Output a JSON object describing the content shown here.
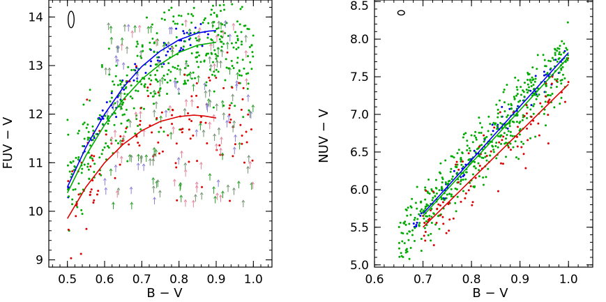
{
  "chart_data": [
    {
      "type": "scatter",
      "panel": "left",
      "xlabel": "B − V",
      "ylabel": "FUV − V",
      "xlim": [
        0.45,
        1.05
      ],
      "ylim": [
        8.85,
        14.35
      ],
      "xticks": [
        0.5,
        0.6,
        0.7,
        0.8,
        0.9,
        1.0
      ],
      "xtick_labels": [
        "0.5",
        "0.6",
        "0.7",
        "0.8",
        "0.9",
        "1.0"
      ],
      "yticks": [
        9,
        10,
        11,
        12,
        13,
        14
      ],
      "ytick_labels": [
        "9",
        "10",
        "11",
        "12",
        "13",
        "14"
      ],
      "ellipse_annotation": {
        "x": 0.51,
        "y": 13.95,
        "rx": 0.008,
        "ry": 0.17
      },
      "fits": [
        {
          "name": "blue fit",
          "color": "#0000ee",
          "x": [
            0.5,
            0.55,
            0.6,
            0.65,
            0.7,
            0.75,
            0.8,
            0.85,
            0.88,
            0.9
          ],
          "y": [
            10.5,
            11.32,
            12.0,
            12.55,
            12.98,
            13.3,
            13.53,
            13.67,
            13.71,
            13.72
          ]
        },
        {
          "name": "green fit",
          "color": "#00aa00",
          "x": [
            0.5,
            0.55,
            0.6,
            0.65,
            0.7,
            0.75,
            0.8,
            0.85,
            0.9
          ],
          "y": [
            10.38,
            11.15,
            11.78,
            12.3,
            12.72,
            13.03,
            13.27,
            13.42,
            13.48
          ]
        },
        {
          "name": "red fit",
          "color": "#dd0000",
          "x": [
            0.5,
            0.55,
            0.6,
            0.65,
            0.7,
            0.75,
            0.8,
            0.84,
            0.87,
            0.9
          ],
          "y": [
            9.85,
            10.5,
            11.0,
            11.38,
            11.66,
            11.85,
            11.95,
            11.98,
            11.96,
            11.92
          ]
        }
      ],
      "series": [
        {
          "name": "blue points",
          "color": "#0000ee",
          "count": 70,
          "trend_x": [
            0.5,
            0.6,
            0.7,
            0.8,
            0.88
          ],
          "trend_y": [
            10.5,
            12.0,
            12.98,
            13.53,
            13.71
          ],
          "scatter": 0.15
        },
        {
          "name": "green points",
          "color": "#00aa00",
          "count": 420,
          "trend_x": [
            0.5,
            0.6,
            0.7,
            0.8,
            0.9,
            1.0
          ],
          "trend_y": [
            10.38,
            11.78,
            12.72,
            13.27,
            13.48,
            13.3
          ],
          "scatter": 0.55
        },
        {
          "name": "red points",
          "color": "#dd0000",
          "count": 130,
          "trend_x": [
            0.5,
            0.6,
            0.7,
            0.8,
            0.9,
            1.0
          ],
          "trend_y": [
            9.85,
            11.0,
            11.66,
            11.95,
            11.92,
            11.6
          ],
          "scatter": 0.6
        },
        {
          "name": "upper-limit arrows",
          "colors": [
            "#2a9d2a",
            "#8a7fd6",
            "#e2859c",
            "#6f8f6f"
          ],
          "count": 190,
          "x_range": [
            0.6,
            1.0
          ],
          "y_range": [
            10.1,
            13.9
          ]
        }
      ]
    },
    {
      "type": "scatter",
      "panel": "right",
      "xlabel": "B − V",
      "ylabel": "NUV − V",
      "xlim": [
        0.6,
        1.05
      ],
      "ylim": [
        4.97,
        8.52
      ],
      "xticks": [
        0.6,
        0.7,
        0.8,
        0.9,
        1.0
      ],
      "xtick_labels": [
        "0.6",
        "0.7",
        "0.8",
        "0.9",
        "1.0"
      ],
      "yticks": [
        5.0,
        5.5,
        6.0,
        6.5,
        7.0,
        7.5,
        8.0,
        8.5
      ],
      "ytick_labels": [
        "5.0",
        "5.5",
        "6.0",
        "6.5",
        "7.0",
        "7.5",
        "8.0",
        "8.5"
      ],
      "ellipse_annotation": {
        "x": 0.655,
        "y": 8.35,
        "rx": 0.007,
        "ry": 0.03
      },
      "fits": [
        {
          "name": "blue fit",
          "color": "#0000ee",
          "x": [
            0.7,
            1.0
          ],
          "y": [
            5.68,
            7.82
          ]
        },
        {
          "name": "green fit",
          "color": "#00aa00",
          "x": [
            0.7,
            1.0
          ],
          "y": [
            5.65,
            7.76
          ]
        },
        {
          "name": "red fit",
          "color": "#dd0000",
          "x": [
            0.7,
            1.0
          ],
          "y": [
            5.5,
            7.4
          ]
        }
      ],
      "series": [
        {
          "name": "blue points",
          "color": "#0000ee",
          "count": 60,
          "trend_x": [
            0.65,
            1.0
          ],
          "trend_y": [
            5.33,
            7.82
          ],
          "scatter": 0.1
        },
        {
          "name": "green points",
          "color": "#00aa00",
          "count": 500,
          "trend_x": [
            0.65,
            1.0
          ],
          "trend_y": [
            5.3,
            7.76
          ],
          "scatter": 0.22
        },
        {
          "name": "red points",
          "color": "#dd0000",
          "count": 90,
          "trend_x": [
            0.7,
            1.0
          ],
          "trend_y": [
            5.5,
            7.4
          ],
          "scatter": 0.25
        }
      ]
    }
  ]
}
